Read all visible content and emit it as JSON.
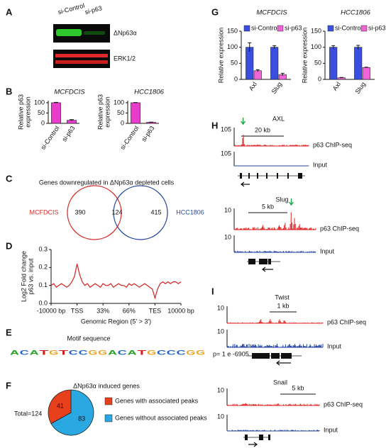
{
  "panel_labels": [
    "A",
    "B",
    "C",
    "D",
    "E",
    "F",
    "G",
    "H",
    "I"
  ],
  "blot": {
    "lanes": [
      "si-Control",
      "si-p63"
    ],
    "bands": [
      "ΔNp63α",
      "ERK1/2"
    ]
  },
  "chart_data": [
    {
      "type": "bar",
      "title": "MCFDCIS",
      "y_label": [
        "Relative p63",
        "expression"
      ],
      "categories": [
        "si-Control",
        "si-p63"
      ],
      "values": [
        100,
        15
      ],
      "errors": [
        2,
        3
      ],
      "color": "#e83ccc",
      "ylim": [
        0,
        110
      ],
      "yticks": [
        0,
        50,
        100
      ]
    },
    {
      "type": "bar",
      "title": "HCC1806",
      "y_label": [
        "Relative p63",
        "expression"
      ],
      "categories": [
        "si-Control",
        "si-p63"
      ],
      "values": [
        100,
        5
      ],
      "errors": [
        1,
        1
      ],
      "color": "#e83ccc",
      "ylim": [
        0,
        110
      ],
      "yticks": [
        0,
        50,
        100
      ]
    },
    {
      "type": "line",
      "y_label": [
        "Log2 Fold change",
        "p63 vs. input"
      ],
      "x_label": "Genomic Region (5' > 3')",
      "color": "#d42020",
      "values": [
        0.1,
        0.11,
        0.09,
        0.1,
        0.11,
        0.1,
        0.09,
        0.1,
        0.12,
        0.15,
        0.22,
        0.16,
        0.12,
        0.1,
        0.11,
        0.09,
        0.1,
        0.11,
        0.1,
        0.09,
        0.11,
        0.1,
        0.1,
        0.11,
        0.09,
        0.1,
        0.11,
        0.1,
        0.1,
        0.09,
        0.11,
        0.1,
        0.11,
        0.1,
        0.09,
        0.1,
        0.11,
        0.1,
        0.09,
        0.08,
        0.03,
        0.08,
        0.11,
        0.12,
        0.11,
        0.12,
        0.11,
        0.12,
        0.12,
        0.11,
        0.12
      ],
      "xlim": [
        0,
        50
      ],
      "xticks": [
        {
          "value": 0,
          "label": "-10000 bp"
        },
        {
          "value": 10,
          "label": "TSS"
        },
        {
          "value": 20,
          "label": "33%"
        },
        {
          "value": 30,
          "label": "66%"
        },
        {
          "value": 40,
          "label": "TES"
        },
        {
          "value": 50,
          "label": "10000 bp"
        }
      ],
      "ylim": [
        0,
        0.3
      ],
      "yticks": [
        {
          "value": 0,
          "label": "0.0"
        },
        0.1,
        0.2,
        0.3
      ]
    },
    {
      "type": "pie",
      "title": "ΔNp63α induced genes",
      "total_label": "Total=124",
      "categories": [
        "Genes with associated peaks",
        "Genes without associated peaks"
      ],
      "values": [
        41,
        83
      ],
      "colors": [
        "#e8401c",
        "#2aa8e2"
      ]
    },
    {
      "type": "grouped_bar",
      "title": "MCFDCIS",
      "y_label": [
        "Relative expression"
      ],
      "categories": [
        "Axl",
        "Slug"
      ],
      "series": [
        {
          "name": "si-Control",
          "color": "#3a4fe0",
          "values": [
            100,
            100
          ],
          "errors": [
            14,
            5
          ]
        },
        {
          "name": "si-p63",
          "color": "#f064d8",
          "values": [
            27,
            15
          ],
          "errors": [
            3,
            4
          ]
        }
      ],
      "ylim": [
        0,
        150
      ],
      "yticks": [
        0,
        50,
        100,
        150
      ]
    },
    {
      "type": "grouped_bar",
      "title": "HCC1806",
      "y_label": [
        "Relative expression"
      ],
      "categories": [
        "Axl",
        "Slug"
      ],
      "series": [
        {
          "name": "si-Control",
          "color": "#3a4fe0",
          "values": [
            100,
            100
          ],
          "errors": [
            5,
            6
          ]
        },
        {
          "name": "si-p63",
          "color": "#f064d8",
          "values": [
            5,
            37
          ],
          "errors": [
            1,
            1
          ]
        }
      ],
      "ylim": [
        0,
        150
      ],
      "yticks": [
        0,
        50,
        100,
        150
      ]
    }
  ],
  "venn": {
    "title": "Genes downregulated in ΔNp63α depleted cells",
    "sets": [
      "MCFDCIS",
      "HCC1806"
    ],
    "counts": [
      390,
      124,
      415
    ]
  },
  "motif": {
    "title": "Motif sequence",
    "letters": [
      "A",
      "C",
      "A",
      "T",
      "G",
      "T",
      "C",
      "C",
      "G",
      "G",
      "A",
      "C",
      "A",
      "T",
      "G",
      "C",
      "C",
      "C",
      "G",
      "G"
    ],
    "p_value": "p= 1 e -6905"
  },
  "tracks": [
    {
      "title": "AXL",
      "scale": "20 kb",
      "rows": [
        {
          "max": 105,
          "label": "p63 ChIP-seq"
        },
        {
          "max": 105,
          "label": "Input"
        }
      ]
    },
    {
      "title": "Slug",
      "scale": "5 kb",
      "rows": [
        {
          "max": 10,
          "label": "p63 ChIP-seq"
        },
        {
          "max": 10,
          "label": "Input"
        }
      ]
    },
    {
      "title": "Twist",
      "scale": "1 kb",
      "rows": [
        {
          "max": 10,
          "label": "p63 ChIP-seq"
        },
        {
          "max": 10,
          "label": "Input"
        }
      ]
    },
    {
      "title": "Snail",
      "scale": "5 kb",
      "rows": [
        {
          "max": 10,
          "label": "p63 ChIP-seq"
        },
        {
          "max": 10,
          "label": "Input"
        }
      ]
    }
  ]
}
